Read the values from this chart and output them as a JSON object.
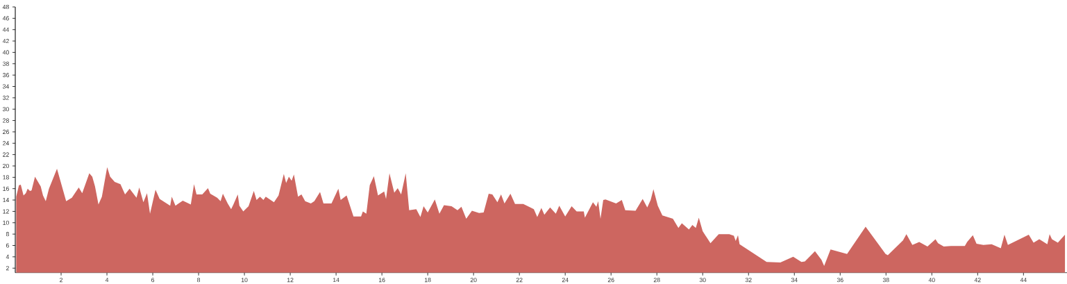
{
  "chart_data": {
    "type": "area",
    "color": "#cd6660",
    "x": [
      0.04,
      0.16,
      0.24,
      0.36,
      0.46,
      0.54,
      0.64,
      0.71,
      0.86,
      1.11,
      1.21,
      1.33,
      1.47,
      1.82,
      2.22,
      2.47,
      2.77,
      2.92,
      3.23,
      3.36,
      3.48,
      3.63,
      3.78,
      4.01,
      4.14,
      4.34,
      4.59,
      4.79,
      4.99,
      5.29,
      5.41,
      5.59,
      5.75,
      5.88,
      6.12,
      6.3,
      6.76,
      6.83,
      6.99,
      7.31,
      7.66,
      7.8,
      7.91,
      8.16,
      8.41,
      8.51,
      8.81,
      8.96,
      9.06,
      9.27,
      9.42,
      9.52,
      9.71,
      9.78,
      9.95,
      10.18,
      10.41,
      10.53,
      10.68,
      10.83,
      10.93,
      11.29,
      11.49,
      11.72,
      11.82,
      11.94,
      12.06,
      12.16,
      12.34,
      12.49,
      12.65,
      12.9,
      13.05,
      13.3,
      13.45,
      13.8,
      14.1,
      14.2,
      14.46,
      14.76,
      15.09,
      15.17,
      15.32,
      15.47,
      15.65,
      15.83,
      16.1,
      16.18,
      16.33,
      16.54,
      16.69,
      16.84,
      17.04,
      17.19,
      17.5,
      17.68,
      17.82,
      18.0,
      18.31,
      18.51,
      18.71,
      19.04,
      19.3,
      19.47,
      19.68,
      19.93,
      20.24,
      20.44,
      20.66,
      20.82,
      21.04,
      21.2,
      21.35,
      21.61,
      21.81,
      22.17,
      22.63,
      22.78,
      22.96,
      23.09,
      23.34,
      23.59,
      23.74,
      24.0,
      24.28,
      24.5,
      24.81,
      24.86,
      25.21,
      25.36,
      25.44,
      25.54,
      25.66,
      25.76,
      26.22,
      26.47,
      26.62,
      27.07,
      27.38,
      27.58,
      27.73,
      27.85,
      28.04,
      28.24,
      28.7,
      28.94,
      29.09,
      29.4,
      29.55,
      29.7,
      29.83,
      30.0,
      30.34,
      30.7,
      31.16,
      31.36,
      31.44,
      31.54,
      31.61,
      32.79,
      33.39,
      33.95,
      34.31,
      34.46,
      34.9,
      35.18,
      35.3,
      35.58,
      36.3,
      37.11,
      37.98,
      38.08,
      38.74,
      38.89,
      39.15,
      39.45,
      39.81,
      40.16,
      40.27,
      40.52,
      40.83,
      41.44,
      41.54,
      41.79,
      41.95,
      42.25,
      42.61,
      43.01,
      43.17,
      43.32,
      44.23,
      44.44,
      44.69,
      45.04,
      45.14,
      45.24,
      45.5,
      45.81
    ],
    "values": [
      14.6,
      16.6,
      16.7,
      14.8,
      15.2,
      16.0,
      15.6,
      15.7,
      18.1,
      16.4,
      14.8,
      13.8,
      16.0,
      19.5,
      13.8,
      14.4,
      16.2,
      15.2,
      18.7,
      18.1,
      16.4,
      13.2,
      14.6,
      19.8,
      18.1,
      17.2,
      16.8,
      15.0,
      16.0,
      14.4,
      16.2,
      13.6,
      15.2,
      11.6,
      15.8,
      14.2,
      13.0,
      14.6,
      13.0,
      13.9,
      13.2,
      16.8,
      15.0,
      15.0,
      16.1,
      15.1,
      14.4,
      13.8,
      15.1,
      13.4,
      12.4,
      13.2,
      15.0,
      13.0,
      12.0,
      12.9,
      15.6,
      14.0,
      14.6,
      14.0,
      14.6,
      13.6,
      14.8,
      18.6,
      17.0,
      18.1,
      17.4,
      18.5,
      14.6,
      15.0,
      13.8,
      13.4,
      13.8,
      15.4,
      13.4,
      13.4,
      16.0,
      14.0,
      14.8,
      11.1,
      11.1,
      12.0,
      11.6,
      16.6,
      18.2,
      14.8,
      15.5,
      14.2,
      18.7,
      15.3,
      16.1,
      15.0,
      18.7,
      12.2,
      12.4,
      11.0,
      12.9,
      11.8,
      14.1,
      11.6,
      13.1,
      12.9,
      12.2,
      12.8,
      10.7,
      12.1,
      11.7,
      11.8,
      15.1,
      15.0,
      13.6,
      15.0,
      13.4,
      15.1,
      13.3,
      13.3,
      12.4,
      11.0,
      12.6,
      11.4,
      12.7,
      11.6,
      13.0,
      11.1,
      12.9,
      12.0,
      12.0,
      10.9,
      13.6,
      12.8,
      13.8,
      10.7,
      14.0,
      14.1,
      13.4,
      14.0,
      12.2,
      12.1,
      14.2,
      12.7,
      14.0,
      15.9,
      13.0,
      11.3,
      10.7,
      9.1,
      9.9,
      8.8,
      9.6,
      9.1,
      10.9,
      8.5,
      6.4,
      8.0,
      8.0,
      7.7,
      6.8,
      7.8,
      6.2,
      3.1,
      3.0,
      4.0,
      3.1,
      3.2,
      5.0,
      3.5,
      2.4,
      5.3,
      4.5,
      9.3,
      4.5,
      4.3,
      6.9,
      8.0,
      6.1,
      6.6,
      5.8,
      7.1,
      6.4,
      5.8,
      5.9,
      5.9,
      6.6,
      7.8,
      6.3,
      6.1,
      6.2,
      5.5,
      7.9,
      6.1,
      7.9,
      6.5,
      7.1,
      6.2,
      8.0,
      7.1,
      6.5,
      7.9
    ],
    "xlim": [
      0,
      45.9
    ],
    "ylim": [
      1.2,
      48
    ],
    "xticks": [
      2,
      4,
      6,
      8,
      10,
      12,
      14,
      16,
      18,
      20,
      22,
      24,
      26,
      28,
      30,
      32,
      34,
      36,
      38,
      40,
      42,
      44
    ],
    "yticks": [
      2,
      4,
      6,
      8,
      10,
      12,
      14,
      16,
      18,
      20,
      22,
      24,
      26,
      28,
      30,
      32,
      34,
      36,
      38,
      40,
      42,
      44,
      46,
      48
    ],
    "grid": false
  }
}
